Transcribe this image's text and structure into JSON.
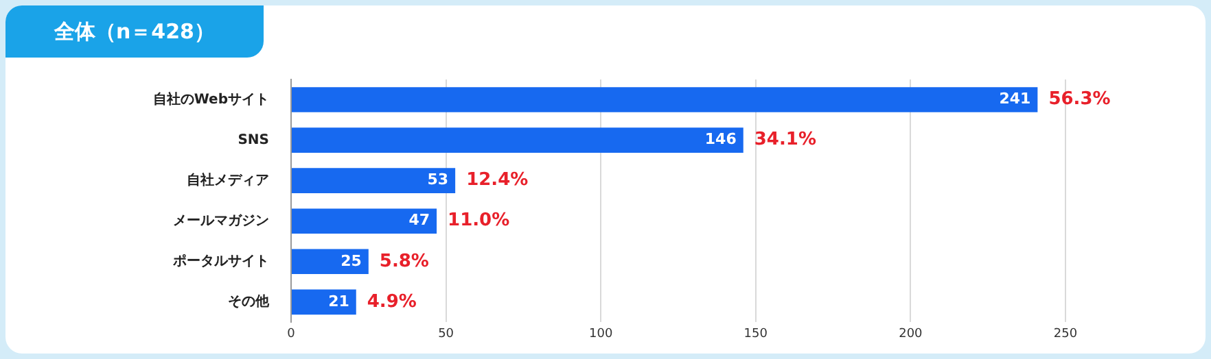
{
  "chart_data": {
    "type": "bar",
    "orientation": "horizontal",
    "title": "全体（n＝428）",
    "categories": [
      "自社のWebサイト",
      "SNS",
      "自社メディア",
      "メールマガジン",
      "ポータルサイト",
      "その他"
    ],
    "values": [
      241,
      146,
      53,
      47,
      25,
      21
    ],
    "color": "#1769f0",
    "value_labels": [
      "241",
      "146",
      "53",
      "47",
      "25",
      "21"
    ],
    "annotations": [
      {
        "text": "56.3%",
        "x": 241,
        "y": "自社のWebサイト"
      },
      {
        "text": "34.1%",
        "x": 146,
        "y": "SNS"
      },
      {
        "text": "12.4%",
        "x": 53,
        "y": "自社メディア"
      },
      {
        "text": "11.0%",
        "x": 47,
        "y": "メールマガジン"
      },
      {
        "text": "5.8%",
        "x": 25,
        "y": "ポータルサイト"
      },
      {
        "text": "4.9%",
        "x": 21,
        "y": "その他"
      }
    ],
    "xlim": [
      0,
      250
    ],
    "xticks": [
      0,
      50,
      100,
      150,
      200,
      250
    ],
    "grid": "x"
  }
}
